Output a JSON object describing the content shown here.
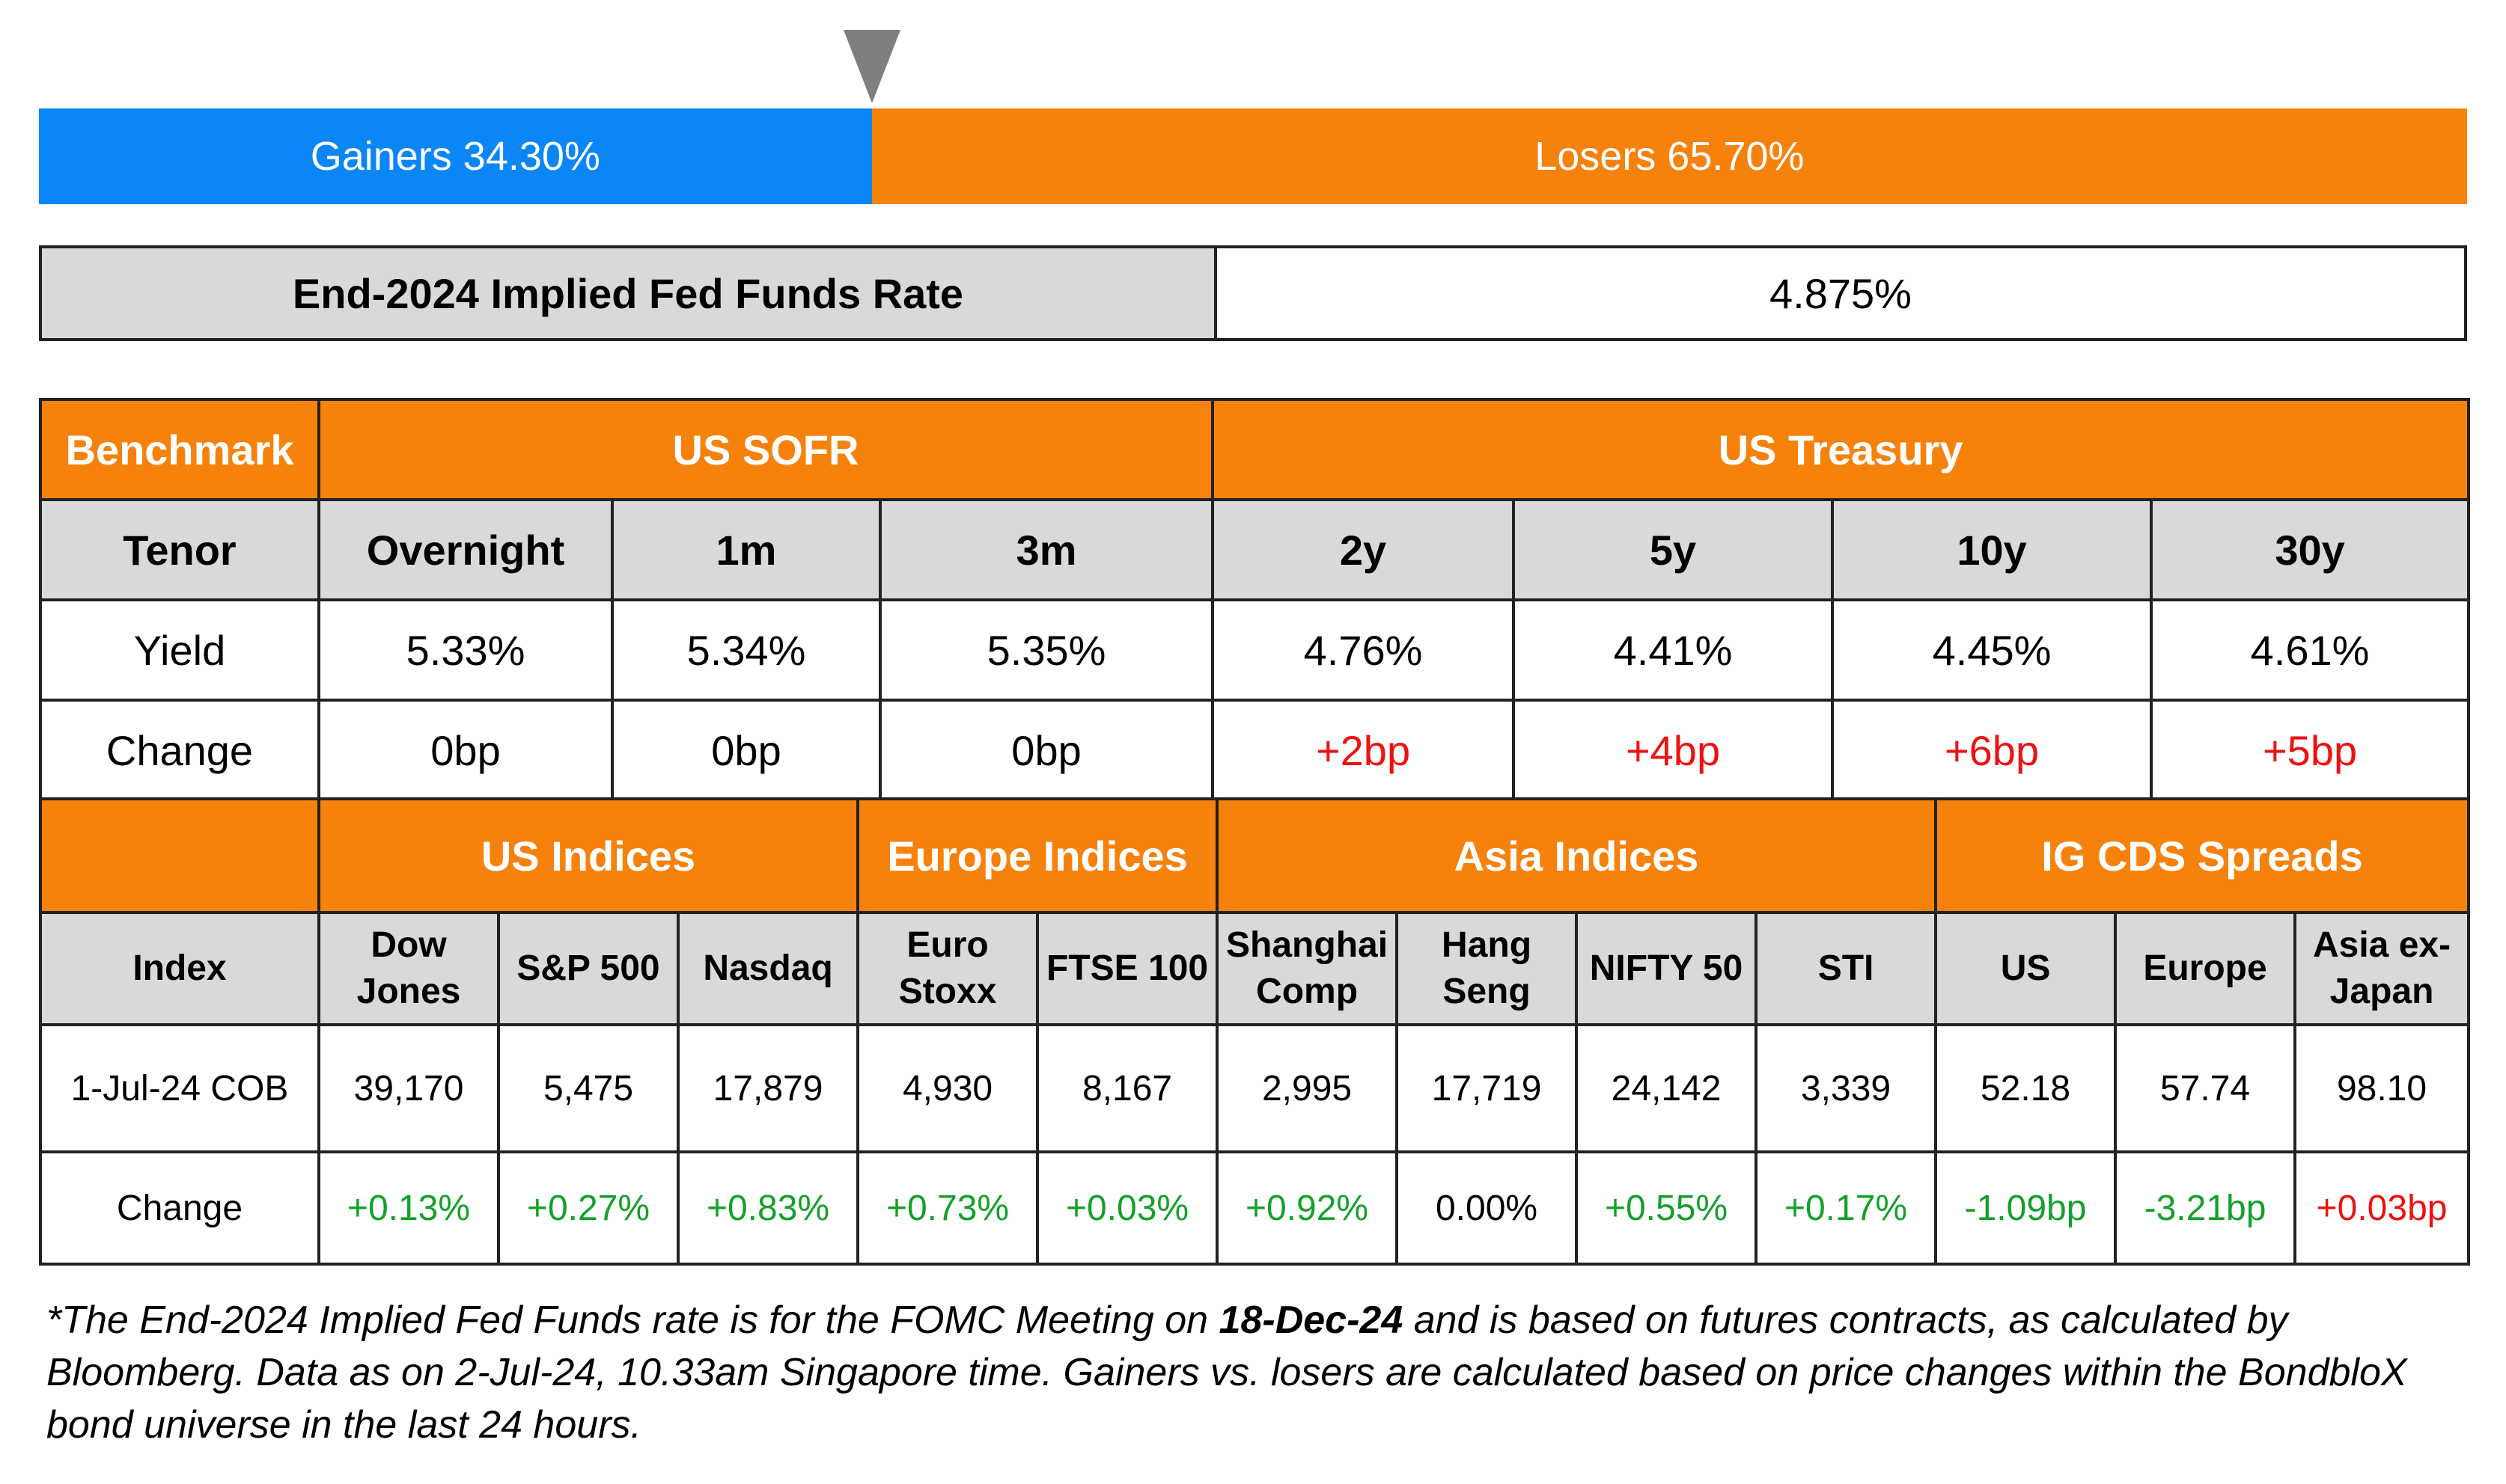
{
  "breadth": {
    "gainers_label": "Gainers 34.30%",
    "losers_label": "Losers 65.70%",
    "gainers_pct": 34.3,
    "losers_pct": 65.7,
    "colors": {
      "gainers": "#0b86f7",
      "losers": "#f6820c",
      "pointer": "#7f7f7f"
    }
  },
  "fed": {
    "label": "End-2024 Implied Fed Funds Rate",
    "value": "4.875%"
  },
  "rates": {
    "header": {
      "benchmark": "Benchmark",
      "sofr": "US SOFR",
      "treasury": "US Treasury"
    },
    "tenor_label": "Tenor",
    "tenors": [
      "Overnight",
      "1m",
      "3m",
      "2y",
      "5y",
      "10y",
      "30y"
    ],
    "yield_label": "Yield",
    "yields": [
      "5.33%",
      "5.34%",
      "5.35%",
      "4.76%",
      "4.41%",
      "4.45%",
      "4.61%"
    ],
    "change_label": "Change",
    "changes": [
      "0bp",
      "0bp",
      "0bp",
      "+2bp",
      "+4bp",
      "+6bp",
      "+5bp"
    ]
  },
  "indices": {
    "groups": {
      "us": "US Indices",
      "europe": "Europe Indices",
      "asia": "Asia Indices",
      "cds": "IG CDS Spreads"
    },
    "index_label": "Index",
    "names": [
      [
        "Dow",
        "Jones"
      ],
      [
        "S&P 500",
        ""
      ],
      [
        "Nasdaq",
        ""
      ],
      [
        "Euro",
        "Stoxx"
      ],
      [
        "FTSE 100",
        ""
      ],
      [
        "Shanghai",
        "Comp"
      ],
      [
        "Hang",
        "Seng"
      ],
      [
        "NIFTY 50",
        ""
      ],
      [
        "STI",
        ""
      ],
      [
        "US",
        ""
      ],
      [
        "Europe",
        ""
      ],
      [
        "Asia ex-",
        "Japan"
      ]
    ],
    "date_label": "1-Jul-24 COB",
    "values": [
      "39,170",
      "5,475",
      "17,879",
      "4,930",
      "8,167",
      "2,995",
      "17,719",
      "24,142",
      "3,339",
      "52.18",
      "57.74",
      "98.10"
    ],
    "change_label": "Change",
    "changes": [
      "+0.13%",
      "+0.27%",
      "+0.83%",
      "+0.73%",
      "+0.03%",
      "+0.92%",
      "0.00%",
      "+0.55%",
      "+0.17%",
      "-1.09bp",
      "-3.21bp",
      "+0.03bp"
    ]
  },
  "footnote": {
    "part1": "*The End-2024 Implied Fed Funds rate is for the FOMC Meeting on ",
    "date": "18-Dec-24",
    "part2": " and is based on futures contracts, as calculated by Bloomberg. Data as on 2-Jul-24, 10.33am Singapore time. Gainers vs. losers are calculated based on price changes within the BondbloX bond universe in the last 24 hours."
  },
  "colors": {
    "header_orange": "#f6820c",
    "header_grey": "#d9d9d9",
    "positive": "#14a02a",
    "negative": "#ee1111"
  }
}
